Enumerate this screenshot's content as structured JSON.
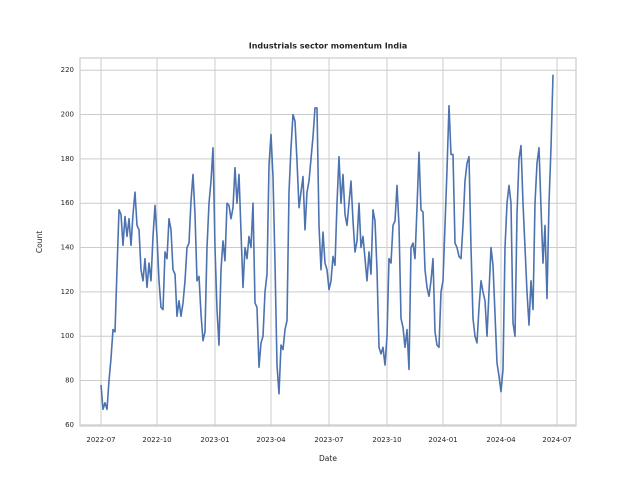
{
  "chart_data": {
    "type": "line",
    "title": "Industrials sector momentum India",
    "x_label": "Date",
    "y_label": "Count",
    "color": "#4c72b0",
    "grid": true,
    "ylim": [
      59.5,
      225.5
    ],
    "yticks": [
      60,
      80,
      100,
      120,
      140,
      160,
      180,
      200,
      220
    ],
    "categories": [
      "2022-07",
      null,
      null,
      null,
      null,
      null,
      null,
      null,
      null,
      null,
      null,
      null,
      null,
      null,
      null,
      null,
      null,
      null,
      null,
      null,
      null,
      null,
      null,
      null,
      null,
      null,
      null,
      null,
      "2022-10",
      null,
      null,
      null,
      null,
      null,
      null,
      null,
      null,
      null,
      null,
      null,
      null,
      null,
      null,
      null,
      null,
      null,
      null,
      null,
      null,
      null,
      null,
      null,
      null,
      null,
      null,
      null,
      null,
      "2023-01",
      null,
      null,
      null,
      null,
      null,
      null,
      null,
      null,
      null,
      null,
      null,
      null,
      null,
      null,
      null,
      null,
      null,
      null,
      null,
      null,
      null,
      null,
      null,
      null,
      null,
      null,
      null,
      "2023-04",
      null,
      null,
      null,
      null,
      null,
      null,
      null,
      null,
      null,
      null,
      null,
      null,
      null,
      null,
      null,
      null,
      null,
      null,
      null,
      null,
      null,
      null,
      null,
      null,
      null,
      null,
      null,
      null,
      "2023-07",
      null,
      null,
      null,
      null,
      null,
      null,
      null,
      null,
      null,
      null,
      null,
      null,
      null,
      null,
      null,
      null,
      null,
      null,
      null,
      null,
      null,
      null,
      null,
      null,
      null,
      null,
      null,
      null,
      "2023-10",
      null,
      null,
      null,
      null,
      null,
      null,
      null,
      null,
      null,
      null,
      null,
      null,
      null,
      null,
      null,
      null,
      null,
      null,
      null,
      null,
      null,
      null,
      null,
      null,
      null,
      null,
      null,
      "2024-01",
      null,
      null,
      null,
      null,
      null,
      null,
      null,
      null,
      null,
      null,
      null,
      null,
      null,
      null,
      null,
      null,
      null,
      null,
      null,
      null,
      null,
      null,
      null,
      null,
      null,
      null,
      null,
      null,
      "2024-04",
      null,
      null,
      null,
      null,
      null,
      null,
      null,
      null,
      null,
      null,
      null,
      null,
      null,
      null,
      null,
      null,
      null,
      null,
      null,
      null,
      null,
      null,
      null,
      null,
      null,
      null,
      null,
      "2024-07"
    ],
    "values": [
      78,
      67,
      70,
      67,
      80,
      90,
      103,
      102,
      130,
      157,
      155,
      141,
      154,
      145,
      153,
      141,
      155,
      165,
      150,
      148,
      130,
      125,
      135,
      122,
      133,
      125,
      145,
      159,
      145,
      125,
      113,
      112,
      138,
      135,
      153,
      148,
      130,
      128,
      109,
      116,
      109,
      115,
      125,
      140,
      142,
      161,
      173,
      155,
      125,
      127,
      110,
      98,
      102,
      140,
      160,
      170,
      185,
      140,
      112,
      96,
      130,
      143,
      134,
      160,
      159,
      153,
      158,
      176,
      160,
      173,
      147,
      122,
      140,
      135,
      145,
      140,
      160,
      115,
      113,
      86,
      97,
      100,
      120,
      128,
      177,
      191,
      172,
      133,
      87,
      74,
      96,
      94,
      103,
      107,
      165,
      185,
      200,
      197,
      179,
      158,
      165,
      172,
      148,
      165,
      170,
      180,
      190,
      203,
      203,
      150,
      130,
      147,
      133,
      130,
      121,
      125,
      136,
      132,
      160,
      181,
      160,
      173,
      155,
      150,
      160,
      170,
      152,
      138,
      143,
      160,
      140,
      145,
      135,
      125,
      138,
      128,
      157,
      152,
      130,
      95,
      92,
      95,
      87,
      100,
      135,
      133,
      150,
      152,
      168,
      150,
      108,
      104,
      95,
      103,
      85,
      140,
      142,
      135,
      158,
      183,
      157,
      156,
      130,
      122,
      118,
      125,
      135,
      102,
      96,
      95,
      120,
      125,
      150,
      175,
      204,
      182,
      182,
      142,
      140,
      136,
      135,
      150,
      170,
      178,
      181,
      140,
      108,
      100,
      97,
      113,
      125,
      120,
      116,
      100,
      120,
      140,
      132,
      110,
      88,
      82,
      75,
      85,
      140,
      160,
      168,
      160,
      106,
      100,
      155,
      180,
      186,
      160,
      140,
      120,
      105,
      125,
      112,
      160,
      178,
      185,
      158,
      133,
      150,
      117,
      160,
      185,
      218,
      null,
      null
    ]
  }
}
